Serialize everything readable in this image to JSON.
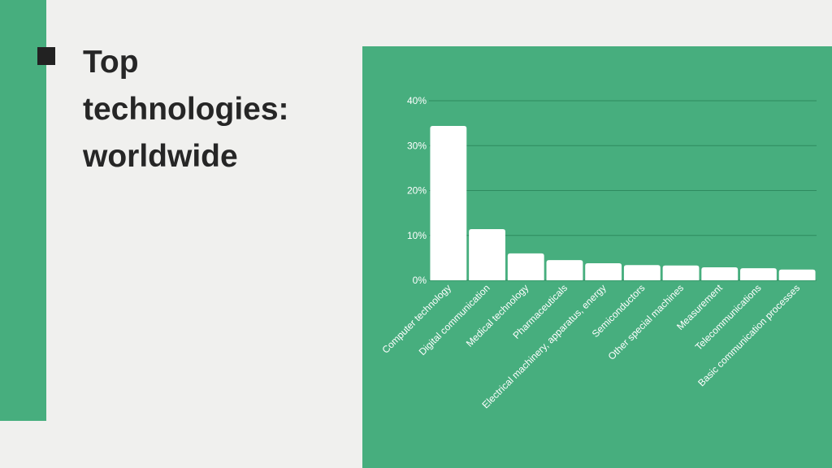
{
  "chart_data": {
    "type": "bar",
    "title": "Top technologies: worldwide",
    "categories": [
      "Computer technology",
      "Digital communication",
      "Medical technology",
      "Pharmaceuticals",
      "Electrical machinery, apparatus, energy",
      "Semiconductors",
      "Other special machines",
      "Measurement",
      "Telecommunications",
      "Basic communication processes"
    ],
    "values": [
      34.4,
      11.4,
      6.0,
      4.5,
      3.8,
      3.4,
      3.3,
      2.9,
      2.7,
      2.4
    ],
    "color": "#ffffff",
    "ylim": [
      0,
      40
    ],
    "yticks": [
      {
        "value": 0,
        "label": "0%"
      },
      {
        "value": 10,
        "label": "10%"
      },
      {
        "value": 20,
        "label": "20%"
      },
      {
        "value": 30,
        "label": "30%"
      },
      {
        "value": 40,
        "label": "40%"
      }
    ],
    "grid": true
  }
}
